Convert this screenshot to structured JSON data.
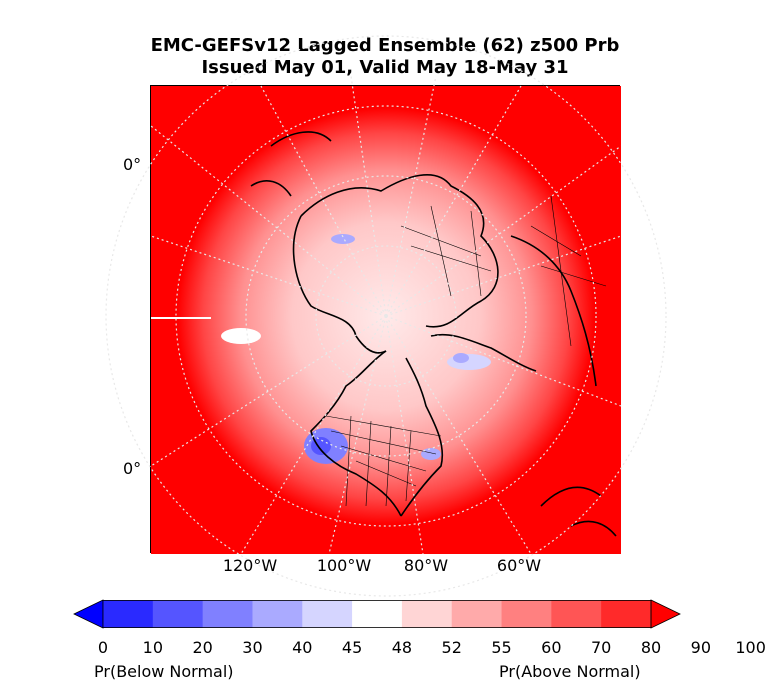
{
  "title": {
    "line1": "EMC-GEFSv12 Lagged Ensemble (62) z500 Prb",
    "line2": "Issued May 01, Valid May 18-May 31"
  },
  "map": {
    "lat_labels": [
      "0°",
      "0°"
    ],
    "lon_labels": [
      "120°W",
      "100°W",
      "80°W",
      "60°W"
    ]
  },
  "colorbar": {
    "ticks": [
      "0",
      "10",
      "20",
      "30",
      "40",
      "45",
      "48",
      "52",
      "55",
      "60",
      "70",
      "80",
      "90",
      "100"
    ],
    "colors": [
      "#0000ff",
      "#2a2aff",
      "#5555ff",
      "#8080ff",
      "#aaaaff",
      "#d5d5ff",
      "#ffffff",
      "#ffd5d5",
      "#ffaaaa",
      "#ff8080",
      "#ff5555",
      "#ff2a2a",
      "#ff0000"
    ],
    "left_label": "Pr(Below Normal)",
    "right_label": "Pr(Above Normal)"
  }
}
